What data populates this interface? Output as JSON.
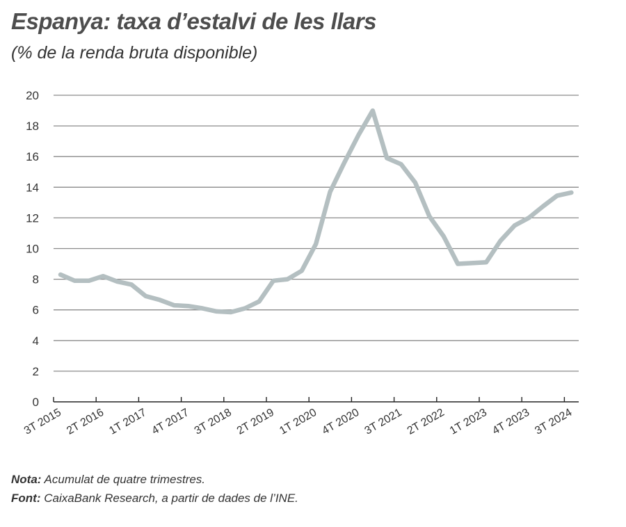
{
  "title": "Espanya: taxa d’estalvi de les llars",
  "subtitle": "(% de la renda bruta disponible)",
  "notes": {
    "nota_label": "Nota:",
    "nota_text": " Acumulat de quatre trimestres.",
    "font_label": "Font:",
    "font_text": " CaixaBank Research, a partir de dades de l’INE."
  },
  "chart_data": {
    "type": "line",
    "title": "Espanya: taxa d’estalvi de les llars",
    "subtitle": "(% de la renda bruta disponible)",
    "xlabel": "",
    "ylabel": "",
    "ylim": [
      0,
      20
    ],
    "yticks": [
      0,
      2,
      4,
      6,
      8,
      10,
      12,
      14,
      16,
      18,
      20
    ],
    "grid": true,
    "line_color": "#b4bfc1",
    "x": [
      "3T 2015",
      "4T 2015",
      "1T 2016",
      "2T 2016",
      "3T 2016",
      "4T 2016",
      "1T 2017",
      "2T 2017",
      "3T 2017",
      "4T 2017",
      "1T 2018",
      "2T 2018",
      "3T 2018",
      "4T 2018",
      "1T 2019",
      "2T 2019",
      "3T 2019",
      "4T 2019",
      "1T 2020",
      "2T 2020",
      "3T 2020",
      "4T 2020",
      "1T 2021",
      "2T 2021",
      "3T 2021",
      "4T 2021",
      "1T 2022",
      "2T 2022",
      "3T 2022",
      "4T 2022",
      "1T 2023",
      "2T 2023",
      "3T 2023",
      "4T 2023",
      "1T 2024",
      "2T 2024",
      "3T 2024"
    ],
    "xtick_labels": [
      "3T 2015",
      "2T 2016",
      "1T 2017",
      "4T 2017",
      "3T 2018",
      "2T 2019",
      "1T 2020",
      "4T 2020",
      "3T 2021",
      "2T 2022",
      "1T 2023",
      "4T 2023",
      "3T 2024"
    ],
    "series": [
      {
        "values": [
          8.3,
          7.9,
          7.9,
          8.2,
          7.85,
          7.65,
          6.9,
          6.65,
          6.3,
          6.25,
          6.1,
          5.9,
          5.85,
          6.1,
          6.55,
          7.9,
          8.0,
          8.55,
          10.3,
          13.7,
          15.6,
          17.4,
          19.0,
          15.9,
          15.5,
          14.3,
          12.1,
          10.8,
          9.0,
          9.05,
          9.1,
          10.5,
          11.5,
          12.0,
          12.75,
          13.45,
          13.65
        ]
      }
    ]
  }
}
